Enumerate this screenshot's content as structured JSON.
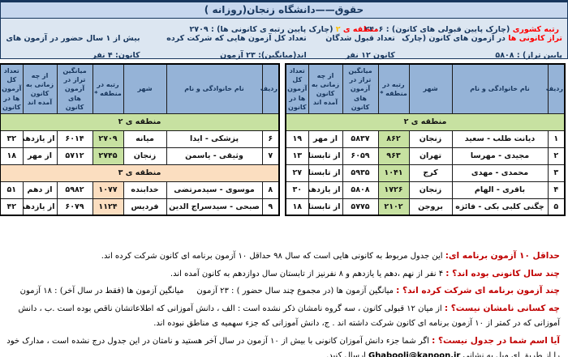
{
  "title": "حقوق——دانشگاه زنجان(روزانه )",
  "summary": {
    "national_rank_label": "رتبه کشوری",
    "national_rank_desc": " (چارک پایین قبولی های کانون) : ۲۴۰۶",
    "region_label": "منطقه ی",
    "region_number": " ۲ ",
    "region_desc": "(چارک پایین رتبه ی کانونی ها) : ۲۷۰۹",
    "taraz_label": "تراز کانونی ها",
    "taraz_desc": " در آزمون های کانون (چارک پایین تراز) : ۵۸۰۸",
    "accepted_count": "تعداد قبول شدگان کانون ۱۲ نفر",
    "total_exams": "تعداد کل آزمون هایی که شرکت کرده اند(میانگین): ۲۳ آزمون",
    "veterans": "بیش از ۱ سال حضور در آزمون های کانون: ۴ نفر"
  },
  "table_columns": [
    "ردیف",
    "نام خانوادگی و نام",
    "شهر",
    "رتبه در منطقه *",
    "میانگین تراز در آزمون های کانون",
    "از چه زمانی به کانون آمده اند",
    "تعداد کل آزمون ها در کانون"
  ],
  "tables": [
    {
      "name": "right",
      "sections": [
        {
          "band": "منطقه ی ۲",
          "tone": "green",
          "rows": [
            {
              "num": "۱",
              "name": "دیانت طلب - سعید",
              "city": "زنجان",
              "rank": "۸۶۲",
              "score": "۵۸۳۷",
              "since": "از مهر",
              "exams": "۱۹"
            },
            {
              "num": "۲",
              "name": "مجیدی - مهرسا",
              "city": "تهران",
              "rank": "۹۶۳",
              "score": "۶۰۵۹",
              "since": "از تابستان",
              "exams": "۱۳"
            },
            {
              "num": "۳",
              "name": "محمدی - مهدی",
              "city": "کرج",
              "rank": "۱۰۴۱",
              "score": "۵۹۳۵",
              "since": "از تابستان",
              "exams": "۲۷"
            },
            {
              "num": "۴",
              "name": "باقری - الهام",
              "city": "زنجان",
              "rank": "۱۷۲۶",
              "score": "۵۸۰۸",
              "since": "از یازدهم",
              "exams": "۳۰"
            },
            {
              "num": "۵",
              "name": "چگنی کلبی بکی - فائزه",
              "city": "بروجن",
              "rank": "۲۱۰۲",
              "score": "۵۷۷۵",
              "since": "از تابستان",
              "exams": "۱۸"
            }
          ]
        }
      ]
    },
    {
      "name": "left",
      "sections": [
        {
          "band": "منطقه ی ۲",
          "tone": "green",
          "rows": [
            {
              "num": "۶",
              "name": "پزشکی - ایدا",
              "city": "میانه",
              "rank": "۲۷۰۹",
              "score": "۶۰۱۴",
              "since": "از یازدهم",
              "exams": "۳۲"
            },
            {
              "num": "۷",
              "name": "وثیقی - یاسمن",
              "city": "زنجان",
              "rank": "۲۷۴۵",
              "score": "۵۷۱۲",
              "since": "از مهر",
              "exams": "۱۸"
            }
          ]
        },
        {
          "band": "منطقه ی ۳",
          "tone": "peach",
          "rows": [
            {
              "num": "۸",
              "name": "موسوی - سیدمرتضی",
              "city": "خدابنده",
              "rank": "۱۰۷۷",
              "score": "۵۹۸۲",
              "since": "از دهم",
              "exams": "۵۱"
            },
            {
              "num": "۹",
              "name": "صبحی - سیدسراج الدین",
              "city": "فردیس",
              "rank": "۱۱۲۴",
              "score": "۶۰۷۹",
              "since": "از یازدهم",
              "exams": "۴۲"
            }
          ]
        }
      ]
    }
  ],
  "notes": [
    {
      "lead": "حداقل ۱۰ آزمون برنامه ای:",
      "body": " این جدول مربوط به کانونی هایی است که سال ۹۸ حداقل ۱۰ آزمون برنامه ای کانون شرکت کرده اند."
    },
    {
      "lead": "چند سال کانونی بوده اند؟ :",
      "body": " ۴ نفر از نهم ،دهم یا یازدهم و ۸ نفرنیز از تابستان سال دوازدهم به کانون آمده اند."
    },
    {
      "lead": "چند آزمون برنامه ای شرکت کرده اند؟ :",
      "body": " میانگین آزمون ها (در مجموع چند سال حضور ) : ۲۳ آزمون     میانگین آزمون ها (فقط در سال آخر) : ۱۸ آزمون"
    },
    {
      "lead": "چه کسانی نامشان نیست؟ :",
      "body": " از میان ۱۲ قبولی کانون ، سه گروه نامشان ذکر نشده است : الف ، دانش آموزانی که اطلاعاتشان ناقص بوده است .ب ، دانش آموزانی که در کمتر از ۱۰ آزمون برنامه ای کانون شرکت داشته اند . ج، دانش آموزانی که جزء سهمیه ی مناطق نبوده اند."
    },
    {
      "lead": "آیا اسم شما در جدول نیست؟ :",
      "body": " اگر شما جزء دانش آموزان کانونی با بیش از ۱۰ آزمون در سال آخر هستید و نامتان در این جدول درج نشده است ، مدارک خود را از طریق ای میل به نشانی ",
      "email": "Ghabooli@kanoon.ir",
      "tail": " ارسال کنید."
    }
  ],
  "colors": {
    "accent_red": "#FF0000",
    "note_red": "#C00000",
    "navy": "#17365D",
    "region_yellow": "#FFC000",
    "header_blue": "#95B3D7",
    "band_green": "#C7E1A1",
    "band_peach": "#FBDEC0",
    "panel_blue": "#DCE6F1",
    "title_blue": "#C7D7EE"
  }
}
